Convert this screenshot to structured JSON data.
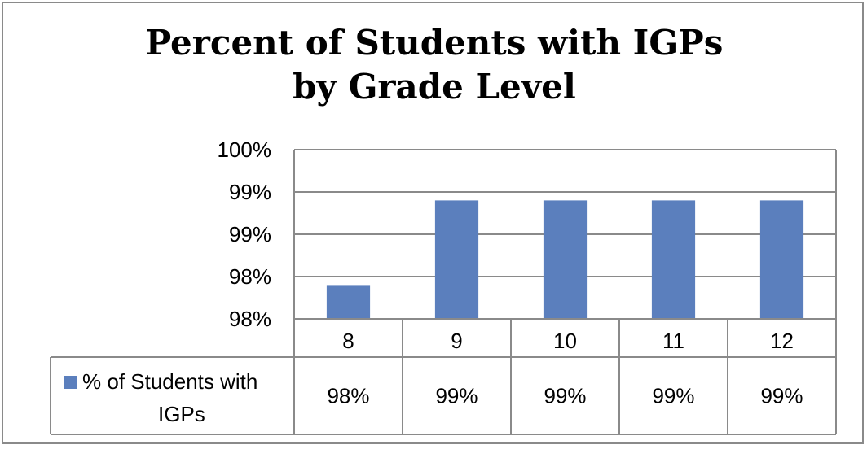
{
  "chart_data": {
    "type": "bar",
    "title_lines": [
      "Percent of Students with IGPs",
      "by Grade Level"
    ],
    "categories": [
      "8",
      "9",
      "10",
      "11",
      "12"
    ],
    "series": [
      {
        "name": "% of Students with IGPs",
        "name_lines": [
          "% of Students with",
          "IGPs"
        ],
        "values": [
          98.2,
          99.2,
          99.2,
          99.2,
          99.2
        ],
        "table_labels": [
          "98%",
          "99%",
          "99%",
          "99%",
          "99%"
        ],
        "color": "#5b7fbd"
      }
    ],
    "y_ticks": [
      {
        "value": 97.8,
        "label": "98%"
      },
      {
        "value": 98.3,
        "label": "98%"
      },
      {
        "value": 98.8,
        "label": "99%"
      },
      {
        "value": 99.3,
        "label": "99%"
      },
      {
        "value": 99.8,
        "label": "100%"
      }
    ],
    "ylim": [
      97.8,
      99.8
    ],
    "grid": true,
    "legend": "data-table-left"
  }
}
